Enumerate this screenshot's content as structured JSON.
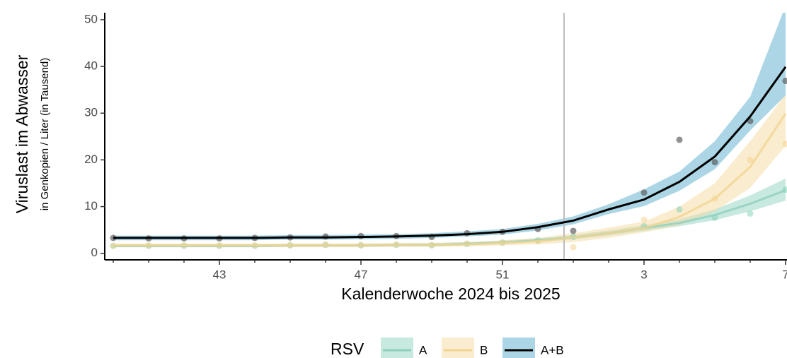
{
  "chart_data": {
    "type": "line",
    "y_title": "Viruslast im Abwasser",
    "y_subtitle": "in Genkopien / Liter (in Tausend)",
    "x_title": "Kalenderwoche 2024 bis 2025",
    "legend_title": "RSV",
    "categories": [
      null,
      null,
      null,
      "43",
      null,
      null,
      null,
      "47",
      null,
      null,
      null,
      "51",
      null,
      null,
      null,
      "3",
      null,
      null,
      null,
      "7"
    ],
    "ylim": [
      -1.4,
      51.5
    ],
    "yticks": [
      0,
      10,
      20,
      30,
      40,
      50
    ],
    "series": [
      {
        "name": "A",
        "color": "#8fd4c1",
        "line_color": "#8fd0bd",
        "point_color": "#7fcfb6",
        "values": [
          1.6,
          1.6,
          1.6,
          1.6,
          1.6,
          1.7,
          1.7,
          1.7,
          1.8,
          1.8,
          2.0,
          2.3,
          2.8,
          3.4,
          4.3,
          5.4,
          6.5,
          8.2,
          10.6,
          13.5
        ],
        "lower": [
          1.3,
          1.3,
          1.3,
          1.3,
          1.3,
          1.4,
          1.4,
          1.4,
          1.5,
          1.5,
          1.7,
          2.0,
          2.4,
          3.0,
          3.8,
          4.8,
          5.8,
          7.1,
          9.0,
          11.3
        ],
        "upper": [
          1.9,
          1.9,
          1.9,
          1.9,
          1.9,
          2.0,
          2.0,
          2.0,
          2.1,
          2.2,
          2.4,
          2.7,
          3.2,
          3.9,
          4.9,
          6.0,
          7.3,
          9.4,
          12.4,
          16.0
        ],
        "points": [
          1.6,
          1.6,
          1.6,
          1.6,
          1.6,
          1.7,
          1.8,
          1.7,
          1.8,
          1.7,
          2.0,
          2.3,
          2.8,
          3.5,
          null,
          5.8,
          9.4,
          7.6,
          8.5,
          13.6
        ]
      },
      {
        "name": "B",
        "color": "#f5d9a0",
        "line_color": "#f3d48f",
        "point_color": "#f5d08a",
        "values": [
          1.7,
          1.7,
          1.7,
          1.7,
          1.7,
          1.7,
          1.7,
          1.7,
          1.8,
          1.8,
          1.9,
          2.2,
          2.6,
          3.4,
          4.3,
          5.4,
          7.8,
          11.7,
          18.5,
          29.9
        ],
        "lower": [
          1.3,
          1.3,
          1.3,
          1.3,
          1.3,
          1.3,
          1.3,
          1.3,
          1.4,
          1.4,
          1.5,
          1.7,
          1.9,
          2.4,
          3.3,
          4.5,
          6.0,
          9.0,
          14.0,
          23.0
        ],
        "upper": [
          2.1,
          2.1,
          2.1,
          2.1,
          2.1,
          2.1,
          2.1,
          2.1,
          2.2,
          2.2,
          2.4,
          2.8,
          3.3,
          4.3,
          5.5,
          6.8,
          10.0,
          15.0,
          24.0,
          34.0
        ],
        "points": [
          1.6,
          1.7,
          1.7,
          1.7,
          1.7,
          1.8,
          1.9,
          1.8,
          1.9,
          1.8,
          2.1,
          2.3,
          2.6,
          1.3,
          null,
          7.2,
          null,
          11.7,
          20.0,
          23.4
        ]
      },
      {
        "name": "A+B",
        "color": "#9ecfe0",
        "line_color": "#000000",
        "point_color": "#555555",
        "values": [
          3.3,
          3.3,
          3.3,
          3.3,
          3.3,
          3.4,
          3.4,
          3.5,
          3.6,
          3.8,
          4.1,
          4.6,
          5.6,
          7.0,
          9.4,
          11.5,
          15.3,
          20.7,
          29.3,
          39.9
        ],
        "lower": [
          2.8,
          2.8,
          2.8,
          2.8,
          2.8,
          2.9,
          2.9,
          3.0,
          3.1,
          3.3,
          3.6,
          4.0,
          4.9,
          6.2,
          8.4,
          10.1,
          13.4,
          18.0,
          26.3,
          33.8
        ],
        "upper": [
          3.8,
          3.8,
          3.8,
          3.8,
          3.8,
          3.9,
          3.9,
          4.0,
          4.1,
          4.3,
          4.7,
          5.2,
          6.3,
          7.9,
          10.5,
          13.7,
          17.5,
          24.0,
          33.5,
          53.0
        ],
        "points": [
          3.3,
          3.2,
          3.2,
          3.2,
          3.3,
          3.4,
          3.6,
          3.7,
          3.7,
          3.5,
          4.3,
          4.6,
          5.2,
          4.8,
          null,
          13.0,
          24.3,
          19.5,
          28.3,
          36.9
        ]
      }
    ]
  }
}
